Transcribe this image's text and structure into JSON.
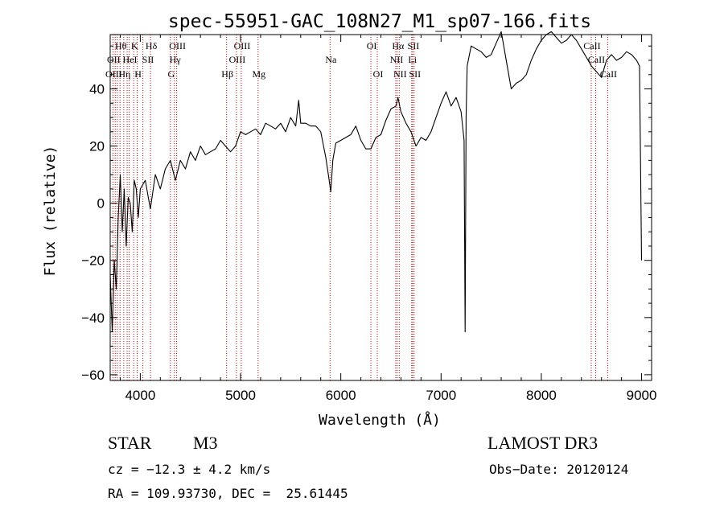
{
  "chart_data": {
    "type": "line",
    "title": "spec-55951-GAC_108N27_M1_sp07-166.fits",
    "xlabel": "Wavelength (Å)",
    "ylabel": "Flux (relative)",
    "xlim": [
      3700,
      9100
    ],
    "ylim": [
      -62,
      59
    ],
    "x_ticks": [
      4000,
      5000,
      6000,
      7000,
      8000,
      9000
    ],
    "y_ticks": [
      -60,
      -40,
      -20,
      0,
      20,
      40
    ],
    "series": [
      {
        "name": "spectrum",
        "x": [
          3700,
          3720,
          3740,
          3760,
          3780,
          3800,
          3820,
          3840,
          3860,
          3880,
          3900,
          3920,
          3940,
          3960,
          3980,
          4000,
          4050,
          4100,
          4150,
          4200,
          4250,
          4300,
          4350,
          4400,
          4450,
          4500,
          4550,
          4600,
          4650,
          4700,
          4750,
          4800,
          4850,
          4900,
          4950,
          5000,
          5050,
          5100,
          5150,
          5200,
          5250,
          5300,
          5350,
          5400,
          5450,
          5500,
          5550,
          5580,
          5600,
          5650,
          5700,
          5750,
          5800,
          5850,
          5880,
          5900,
          5920,
          5950,
          6000,
          6050,
          6100,
          6150,
          6200,
          6250,
          6300,
          6350,
          6400,
          6450,
          6500,
          6550,
          6570,
          6600,
          6650,
          6700,
          6750,
          6800,
          6850,
          6900,
          6950,
          7000,
          7050,
          7100,
          7150,
          7200,
          7230,
          7240,
          7250,
          7260,
          7300,
          7350,
          7400,
          7450,
          7500,
          7550,
          7600,
          7650,
          7700,
          7750,
          7800,
          7850,
          7900,
          7950,
          8000,
          8050,
          8100,
          8150,
          8200,
          8250,
          8300,
          8350,
          8400,
          8450,
          8500,
          8550,
          8600,
          8650,
          8700,
          8750,
          8800,
          8850,
          8900,
          8950,
          8980,
          9000
        ],
        "values": [
          -25,
          -45,
          -20,
          -30,
          -5,
          10,
          -10,
          5,
          -15,
          2,
          0,
          -10,
          8,
          5,
          -5,
          5,
          8,
          -2,
          10,
          5,
          12,
          15,
          8,
          15,
          12,
          18,
          15,
          20,
          17,
          18,
          19,
          22,
          20,
          18,
          20,
          25,
          24,
          25,
          26,
          24,
          28,
          27,
          26,
          28,
          25,
          30,
          27,
          36,
          28,
          28,
          27,
          27,
          25,
          16,
          9,
          4,
          15,
          21,
          22,
          23,
          24,
          27,
          22,
          19,
          19,
          23,
          24,
          29,
          33,
          34,
          37,
          32,
          28,
          25,
          20,
          23,
          22,
          25,
          30,
          35,
          39,
          34,
          37,
          32,
          22,
          -45,
          30,
          48,
          55,
          54,
          53,
          51,
          52,
          56,
          60,
          50,
          40,
          42,
          43,
          45,
          50,
          54,
          57,
          59,
          60,
          58,
          56,
          57,
          59,
          57,
          54,
          51,
          48,
          46,
          44,
          50,
          52,
          50,
          51,
          53,
          52,
          50,
          48,
          -20
        ]
      }
    ],
    "lines": {
      "positions": [
        3727,
        3750,
        3771,
        3798,
        3835,
        3869,
        3889,
        3934,
        3969,
        4026,
        4102,
        4300,
        4340,
        4363,
        4861,
        4959,
        5007,
        5175,
        5893,
        6300,
        6364,
        6548,
        6563,
        6583,
        6707,
        6716,
        6731,
        8498,
        8542,
        8662
      ],
      "labels": [
        {
          "text": "Hθ",
          "wave": 3798,
          "row": 0
        },
        {
          "text": "K",
          "wave": 3934,
          "row": 0
        },
        {
          "text": "Hδ",
          "wave": 4102,
          "row": 0
        },
        {
          "text": "OIII",
          "wave": 4363,
          "row": 0
        },
        {
          "text": "OIII",
          "wave": 5007,
          "row": 0
        },
        {
          "text": "OI",
          "wave": 6300,
          "row": 0
        },
        {
          "text": "Hα",
          "wave": 6563,
          "row": 0
        },
        {
          "text": "SII",
          "wave": 6716,
          "row": 0
        },
        {
          "text": "CaII",
          "wave": 8498,
          "row": 0
        },
        {
          "text": "OII",
          "wave": 3727,
          "row": 1
        },
        {
          "text": "HeI",
          "wave": 3889,
          "row": 1
        },
        {
          "text": "SII",
          "wave": 4069,
          "row": 1
        },
        {
          "text": "Hγ",
          "wave": 4340,
          "row": 1
        },
        {
          "text": "OIII",
          "wave": 4959,
          "row": 1
        },
        {
          "text": "Na",
          "wave": 5893,
          "row": 1
        },
        {
          "text": "NII",
          "wave": 6548,
          "row": 1
        },
        {
          "text": "Li",
          "wave": 6707,
          "row": 1
        },
        {
          "text": "CaII",
          "wave": 8542,
          "row": 1
        },
        {
          "text": "OIII",
          "wave": 3727,
          "row": 2
        },
        {
          "text": "Hη",
          "wave": 3835,
          "row": 2
        },
        {
          "text": "H",
          "wave": 3969,
          "row": 2
        },
        {
          "text": "G",
          "wave": 4300,
          "row": 2
        },
        {
          "text": "Hβ",
          "wave": 4861,
          "row": 2
        },
        {
          "text": "Mg",
          "wave": 5175,
          "row": 2
        },
        {
          "text": "OI",
          "wave": 6364,
          "row": 2
        },
        {
          "text": "NII",
          "wave": 6583,
          "row": 2
        },
        {
          "text": "SII",
          "wave": 6731,
          "row": 2
        },
        {
          "text": "CaII",
          "wave": 8662,
          "row": 2
        }
      ]
    }
  },
  "info": {
    "class": "STAR",
    "subclass": "M3",
    "survey": "LAMOST DR3",
    "cz": "cz = −12.3 ± 4.2 km/s",
    "obsdate": "Obs−Date: 20120124",
    "coords": "RA = 109.93730, DEC =  25.61445"
  },
  "colors": {
    "spectrum": "#000000",
    "lines": "#cc0000"
  }
}
